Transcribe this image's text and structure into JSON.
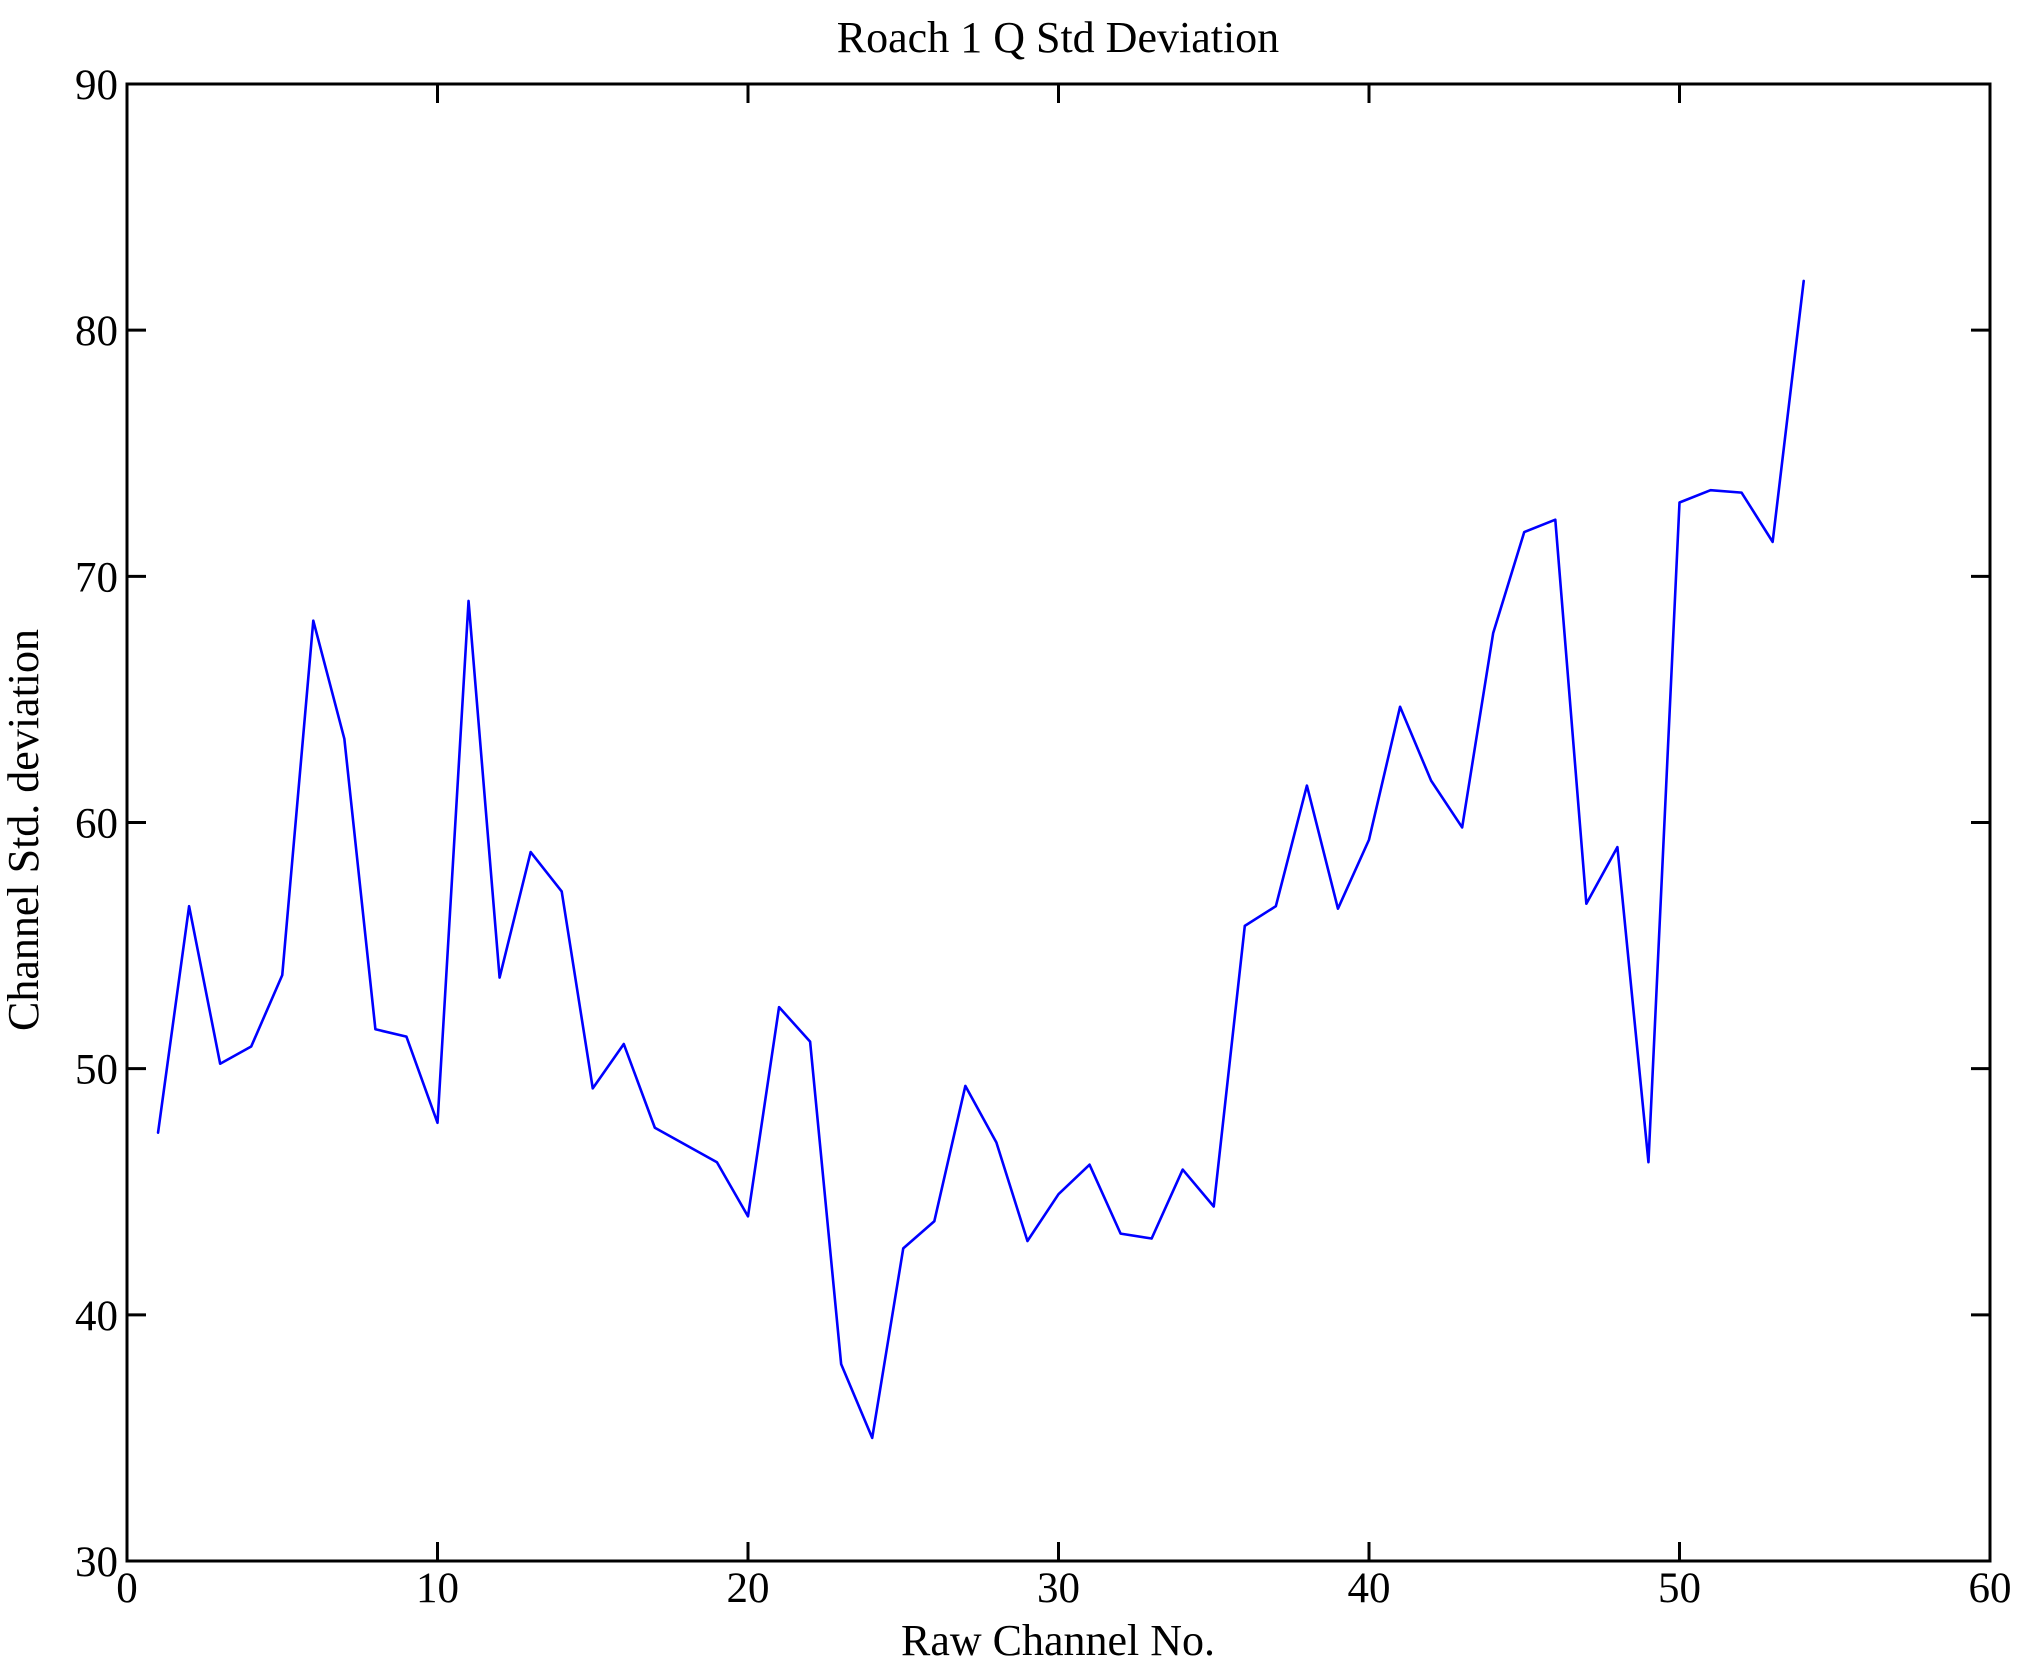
{
  "figure": {
    "background_color": "#ffffff",
    "axis_color": "#000000"
  },
  "chart_data": {
    "type": "line",
    "title": "Roach 1 Q Std Deviation",
    "xlabel": "Raw Channel No.",
    "ylabel": "Channel Std. deviation",
    "xlim": [
      0,
      60
    ],
    "ylim": [
      30,
      90
    ],
    "x_ticks": [
      0,
      10,
      20,
      30,
      40,
      50,
      60
    ],
    "y_ticks": [
      30,
      40,
      50,
      60,
      70,
      80,
      90
    ],
    "grid": false,
    "legend_position": "none",
    "line_color": "#0000ff",
    "series": [
      {
        "name": "channel-std-deviation",
        "x": [
          1,
          2,
          3,
          4,
          5,
          6,
          7,
          8,
          9,
          10,
          11,
          12,
          13,
          14,
          15,
          16,
          17,
          18,
          19,
          20,
          21,
          22,
          23,
          24,
          25,
          26,
          27,
          28,
          29,
          30,
          31,
          32,
          33,
          34,
          35,
          36,
          37,
          38,
          39,
          40,
          41,
          42,
          43,
          44,
          45,
          46,
          47,
          48,
          49,
          50,
          51,
          52,
          53,
          54
        ],
        "values": [
          47.4,
          56.6,
          50.2,
          50.9,
          53.8,
          68.2,
          63.4,
          51.6,
          51.3,
          47.8,
          69.0,
          53.7,
          58.8,
          57.2,
          49.2,
          51.0,
          47.6,
          46.9,
          46.2,
          44.0,
          52.5,
          51.1,
          38.0,
          35.0,
          42.7,
          43.8,
          49.3,
          47.0,
          43.0,
          44.9,
          46.1,
          43.3,
          43.1,
          45.9,
          44.4,
          55.8,
          56.6,
          61.5,
          56.5,
          59.3,
          64.7,
          61.7,
          59.8,
          67.7,
          71.8,
          72.3,
          56.7,
          59.0,
          46.2,
          73.0,
          73.5,
          73.4,
          71.4,
          82.0
        ]
      }
    ]
  }
}
